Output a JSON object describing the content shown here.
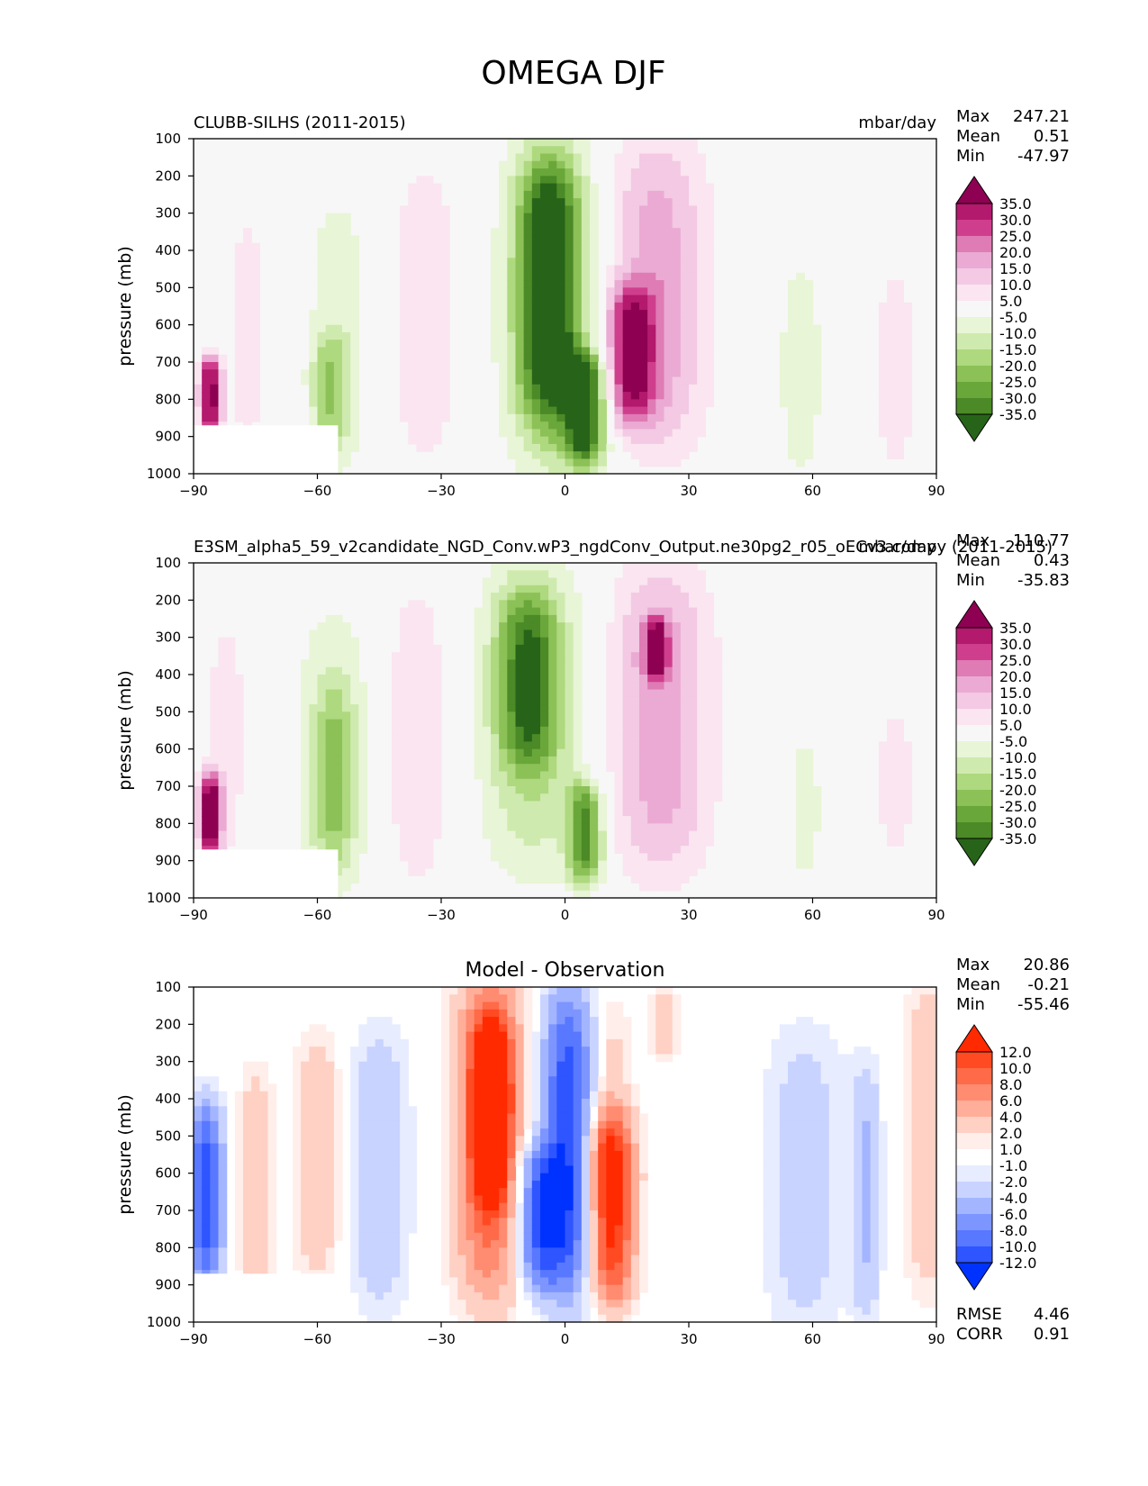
{
  "figure": {
    "title": "OMEGA DJF",
    "ylabel": "pressure (mb)",
    "x_ticks": [
      "−90",
      "−60",
      "−30",
      "0",
      "30",
      "60",
      "90"
    ],
    "y_ticks": [
      "100",
      "200",
      "300",
      "400",
      "500",
      "600",
      "700",
      "800",
      "900",
      "1000"
    ]
  },
  "chart_data": [
    {
      "type": "heatmap",
      "id": "test",
      "title_left": "CLUBB-SILHS (2011-2015)",
      "title_right": "mbar/day",
      "xlabel": "",
      "ylabel": "pressure (mb)",
      "xlim": [
        -90,
        90
      ],
      "ylim": [
        1000,
        100
      ],
      "stats": {
        "labels": [
          "Max",
          "Mean",
          "Min"
        ],
        "values": [
          "247.21",
          "0.51",
          "-47.97"
        ]
      },
      "colorbar": {
        "levels": [
          "35.0",
          "30.0",
          "25.0",
          "20.0",
          "15.0",
          "10.0",
          "5.0",
          "-5.0",
          "-10.0",
          "-15.0",
          "-20.0",
          "-25.0",
          "-30.0",
          "-35.0"
        ],
        "colors": [
          "#8e0152",
          "#b3196d",
          "#cf3e8d",
          "#df7bb5",
          "#ebaad3",
          "#f3c9e4",
          "#fae5f0",
          "#f7f7f7",
          "#e8f5d7",
          "#cfeaae",
          "#aed97f",
          "#8cc157",
          "#6aa73a",
          "#4b8a26",
          "#276419"
        ]
      },
      "features": [
        {
          "lat": -3,
          "p_center": 550,
          "p_half": 390,
          "width": 8,
          "value": -20
        },
        {
          "lat": -4,
          "p_center": 500,
          "p_half": 290,
          "width": 5,
          "value": -30
        },
        {
          "lat": 5,
          "p_center": 830,
          "p_half": 130,
          "width": 3.5,
          "value": -36
        },
        {
          "lat": 22,
          "p_center": 520,
          "p_half": 370,
          "width": 9,
          "value": 18
        },
        {
          "lat": 16,
          "p_center": 680,
          "p_half": 160,
          "width": 4,
          "value": 28
        },
        {
          "lat": -34,
          "p_center": 570,
          "p_half": 360,
          "width": 6,
          "value": 9
        },
        {
          "lat": -77,
          "p_center": 620,
          "p_half": 300,
          "width": 4,
          "value": 7
        },
        {
          "lat": -55,
          "p_center": 630,
          "p_half": 340,
          "width": 6,
          "value": -8
        },
        {
          "lat": -57,
          "p_center": 780,
          "p_half": 140,
          "width": 3,
          "value": -13
        },
        {
          "lat": 57,
          "p_center": 720,
          "p_half": 280,
          "width": 5,
          "value": -7
        },
        {
          "lat": 80,
          "p_center": 720,
          "p_half": 240,
          "width": 4,
          "value": 8
        },
        {
          "lat": -86,
          "p_center": 790,
          "p_half": 90,
          "width": 1.8,
          "value": 40
        }
      ],
      "mask": {
        "lon_max": -55,
        "p_min": 870
      }
    },
    {
      "type": "heatmap",
      "id": "reference",
      "title_left": "E3SM_alpha5_59_v2candidate_NGD_Conv.wP3_ngdConv_Output.ne30pg2_r05_oECv3.compy (2011-2015)",
      "title_right": "mbar/day",
      "xlabel": "",
      "ylabel": "pressure (mb)",
      "xlim": [
        -90,
        90
      ],
      "ylim": [
        1000,
        100
      ],
      "stats": {
        "labels": [
          "Max",
          "Mean",
          "Min"
        ],
        "values": [
          "110.77",
          "0.43",
          "-35.83"
        ]
      },
      "colorbar": {
        "levels": [
          "35.0",
          "30.0",
          "25.0",
          "20.0",
          "15.0",
          "10.0",
          "5.0",
          "-5.0",
          "-10.0",
          "-15.0",
          "-20.0",
          "-25.0",
          "-30.0",
          "-35.0"
        ],
        "colors": [
          "#8e0152",
          "#b3196d",
          "#cf3e8d",
          "#df7bb5",
          "#ebaad3",
          "#f3c9e4",
          "#fae5f0",
          "#f7f7f7",
          "#e8f5d7",
          "#cfeaae",
          "#aed97f",
          "#8cc157",
          "#6aa73a",
          "#4b8a26",
          "#276419"
        ]
      },
      "features": [
        {
          "lat": -8,
          "p_center": 500,
          "p_half": 380,
          "width": 9,
          "value": -15
        },
        {
          "lat": -9,
          "p_center": 420,
          "p_half": 200,
          "width": 5,
          "value": -24
        },
        {
          "lat": 5,
          "p_center": 830,
          "p_half": 120,
          "width": 3,
          "value": -30
        },
        {
          "lat": 23,
          "p_center": 520,
          "p_half": 370,
          "width": 9,
          "value": 18
        },
        {
          "lat": 22,
          "p_center": 330,
          "p_half": 70,
          "width": 2,
          "value": 28
        },
        {
          "lat": -36,
          "p_center": 570,
          "p_half": 360,
          "width": 6,
          "value": 9
        },
        {
          "lat": -82,
          "p_center": 560,
          "p_half": 300,
          "width": 4,
          "value": 7
        },
        {
          "lat": -56,
          "p_center": 600,
          "p_half": 350,
          "width": 7,
          "value": -9
        },
        {
          "lat": -56,
          "p_center": 680,
          "p_half": 220,
          "width": 3.5,
          "value": -13
        },
        {
          "lat": 58,
          "p_center": 760,
          "p_half": 220,
          "width": 5,
          "value": -6
        },
        {
          "lat": 80,
          "p_center": 690,
          "p_half": 200,
          "width": 4,
          "value": 7
        },
        {
          "lat": -86,
          "p_center": 780,
          "p_half": 100,
          "width": 1.8,
          "value": 40
        }
      ],
      "mask": {
        "lon_max": -55,
        "p_min": 870
      }
    },
    {
      "type": "heatmap",
      "id": "difference",
      "title_center": "Model - Observation",
      "xlabel": "",
      "ylabel": "pressure (mb)",
      "xlim": [
        -90,
        90
      ],
      "ylim": [
        1000,
        100
      ],
      "stats": {
        "labels": [
          "Max",
          "Mean",
          "Min"
        ],
        "values": [
          "20.86",
          "-0.21",
          "-55.46"
        ]
      },
      "metrics": {
        "labels": [
          "RMSE",
          "CORR"
        ],
        "values": [
          "4.46",
          "0.91"
        ]
      },
      "colorbar": {
        "levels": [
          "12.0",
          "10.0",
          "8.0",
          "6.0",
          "4.0",
          "2.0",
          "1.0",
          "-1.0",
          "-2.0",
          "-4.0",
          "-6.0",
          "-8.0",
          "-10.0",
          "-12.0"
        ],
        "colors": [
          "#ff2a00",
          "#ff4a22",
          "#ff6a48",
          "#ff8c70",
          "#ffae99",
          "#ffd0c4",
          "#ffeeea",
          "#ffffff",
          "#e8ecff",
          "#c9d3ff",
          "#a3b5ff",
          "#7d95ff",
          "#5878ff",
          "#2e55ff",
          "#0032ff"
        ]
      },
      "features": [
        {
          "lat": -18,
          "p_center": 500,
          "p_half": 380,
          "width": 6,
          "value": 10
        },
        {
          "lat": -18,
          "p_center": 430,
          "p_half": 200,
          "width": 3,
          "value": 13
        },
        {
          "lat": 1,
          "p_center": 520,
          "p_half": 360,
          "width": 5,
          "value": -12
        },
        {
          "lat": -7,
          "p_center": 720,
          "p_half": 170,
          "width": 4,
          "value": -9
        },
        {
          "lat": 11,
          "p_center": 700,
          "p_half": 220,
          "width": 4,
          "value": 13
        },
        {
          "lat": 10,
          "p_center": 430,
          "p_half": 260,
          "width": 4,
          "value": 4
        },
        {
          "lat": -45,
          "p_center": 590,
          "p_half": 320,
          "width": 5,
          "value": -4
        },
        {
          "lat": -60,
          "p_center": 560,
          "p_half": 280,
          "width": 4,
          "value": 4
        },
        {
          "lat": -75,
          "p_center": 630,
          "p_half": 260,
          "width": 3,
          "value": 4
        },
        {
          "lat": -87,
          "p_center": 660,
          "p_half": 220,
          "width": 3,
          "value": -11
        },
        {
          "lat": 58,
          "p_center": 620,
          "p_half": 360,
          "width": 7,
          "value": -3
        },
        {
          "lat": 73,
          "p_center": 650,
          "p_half": 300,
          "width": 2.5,
          "value": -4
        },
        {
          "lat": 88,
          "p_center": 500,
          "p_half": 360,
          "width": 4,
          "value": 4
        },
        {
          "lat": 24,
          "p_center": 200,
          "p_half": 80,
          "width": 3,
          "value": 3
        }
      ],
      "mask": {
        "lon_max": -55,
        "p_min": 870
      }
    }
  ]
}
